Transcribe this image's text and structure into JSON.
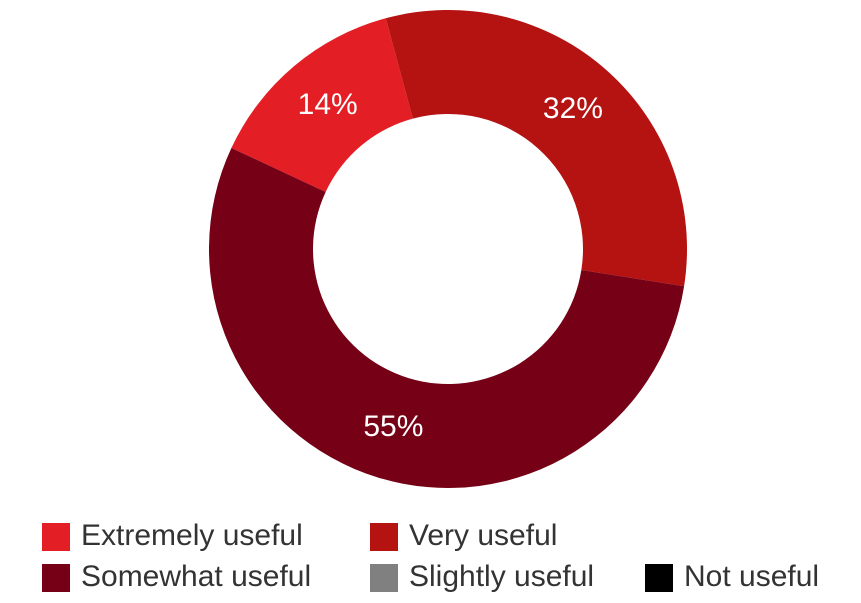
{
  "chart_data": {
    "type": "donut",
    "categories": [
      "Extremely useful",
      "Very useful",
      "Somewhat useful",
      "Slightly useful",
      "Not useful"
    ],
    "values": [
      14,
      32,
      55,
      0,
      0
    ],
    "value_labels": [
      "14%",
      "32%",
      "55%",
      null,
      null
    ],
    "colors": [
      "#e31e24",
      "#b51212",
      "#760015",
      "#808080",
      "#000000"
    ],
    "legend": "bottom"
  }
}
